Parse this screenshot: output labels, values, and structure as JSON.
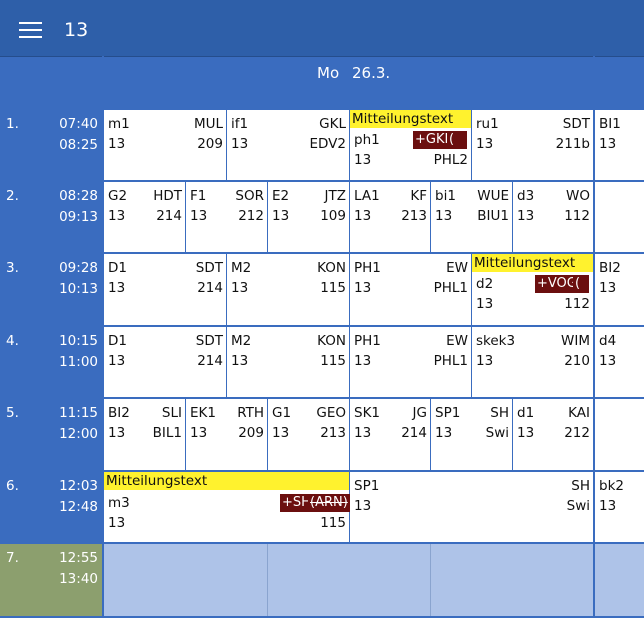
{
  "header": {
    "title": "13"
  },
  "day": {
    "name": "Mo",
    "date": "26.3."
  },
  "periods": [
    {
      "num": "1.",
      "start": "07:40",
      "end": "08:25"
    },
    {
      "num": "2.",
      "start": "08:28",
      "end": "09:13"
    },
    {
      "num": "3.",
      "start": "09:28",
      "end": "10:13"
    },
    {
      "num": "4.",
      "start": "10:15",
      "end": "11:00"
    },
    {
      "num": "5.",
      "start": "11:15",
      "end": "12:00"
    },
    {
      "num": "6.",
      "start": "12:03",
      "end": "12:48"
    },
    {
      "num": "7.",
      "start": "12:55",
      "end": "13:40"
    }
  ],
  "lessons": {
    "p1": [
      {
        "subject": "m1",
        "teacher": "MUL",
        "class": "13",
        "room": "209"
      },
      {
        "subject": "if1",
        "teacher": "GKL",
        "class": "13",
        "room": "EDV2"
      },
      {
        "notice": "Mitteilungstext",
        "subject": "ph1",
        "tag": "+GKL",
        "tag2": "(",
        "class": "13",
        "room": "PHL2"
      },
      {
        "subject": "ru1",
        "teacher": "SDT",
        "class": "13",
        "room": "211b"
      },
      {
        "subject": "BI1",
        "class": "13"
      }
    ],
    "p2": [
      {
        "subject": "G2",
        "teacher": "HDT",
        "class": "13",
        "room": "214"
      },
      {
        "subject": "F1",
        "teacher": "SOR",
        "class": "13",
        "room": "212"
      },
      {
        "subject": "E2",
        "teacher": "JTZ",
        "class": "13",
        "room": "109"
      },
      {
        "subject": "LA1",
        "teacher": "KF",
        "class": "13",
        "room": "213"
      },
      {
        "subject": "bi1",
        "teacher": "WUE",
        "class": "13",
        "room": "BIU1"
      },
      {
        "subject": "d3",
        "teacher": "WO",
        "class": "13",
        "room": "112"
      }
    ],
    "p3": [
      {
        "subject": "D1",
        "teacher": "SDT",
        "class": "13",
        "room": "214"
      },
      {
        "subject": "M2",
        "teacher": "KON",
        "class": "13",
        "room": "115"
      },
      {
        "subject": "PH1",
        "teacher": "EW",
        "class": "13",
        "room": "PHL1"
      },
      {
        "notice": "Mitteilungstext",
        "subject": "d2",
        "tag": "+VOG",
        "tag2": "(",
        "class": "13",
        "room": "112"
      },
      {
        "subject": "BI2",
        "class": "13"
      }
    ],
    "p4": [
      {
        "subject": "D1",
        "teacher": "SDT",
        "class": "13",
        "room": "214"
      },
      {
        "subject": "M2",
        "teacher": "KON",
        "class": "13",
        "room": "115"
      },
      {
        "subject": "PH1",
        "teacher": "EW",
        "class": "13",
        "room": "PHL1"
      },
      {
        "subject": "skek3",
        "teacher": "WIM",
        "class": "13",
        "room": "210"
      },
      {
        "subject": "d4",
        "class": "13"
      }
    ],
    "p5": [
      {
        "subject": "BI2",
        "teacher": "SLI",
        "class": "13",
        "room": "BIL1"
      },
      {
        "subject": "EK1",
        "teacher": "RTH",
        "class": "13",
        "room": "209"
      },
      {
        "subject": "G1",
        "teacher": "GEO",
        "class": "13",
        "room": "213"
      },
      {
        "subject": "SK1",
        "teacher": "JG",
        "class": "13",
        "room": "214"
      },
      {
        "subject": "SP1",
        "teacher": "SH",
        "class": "13",
        "room": "Swi"
      },
      {
        "subject": "d1",
        "teacher": "KAI",
        "class": "13",
        "room": "212"
      }
    ],
    "p6": [
      {
        "notice": "Mitteilungstext",
        "subject": "m3",
        "tag": "+SH",
        "tag2": "(ARN)",
        "class": "13",
        "room": "115"
      },
      {
        "subject": "SP1",
        "teacher": "SH",
        "class": "13",
        "room": "Swi"
      },
      {
        "subject": "bk2",
        "class": "13"
      }
    ]
  }
}
